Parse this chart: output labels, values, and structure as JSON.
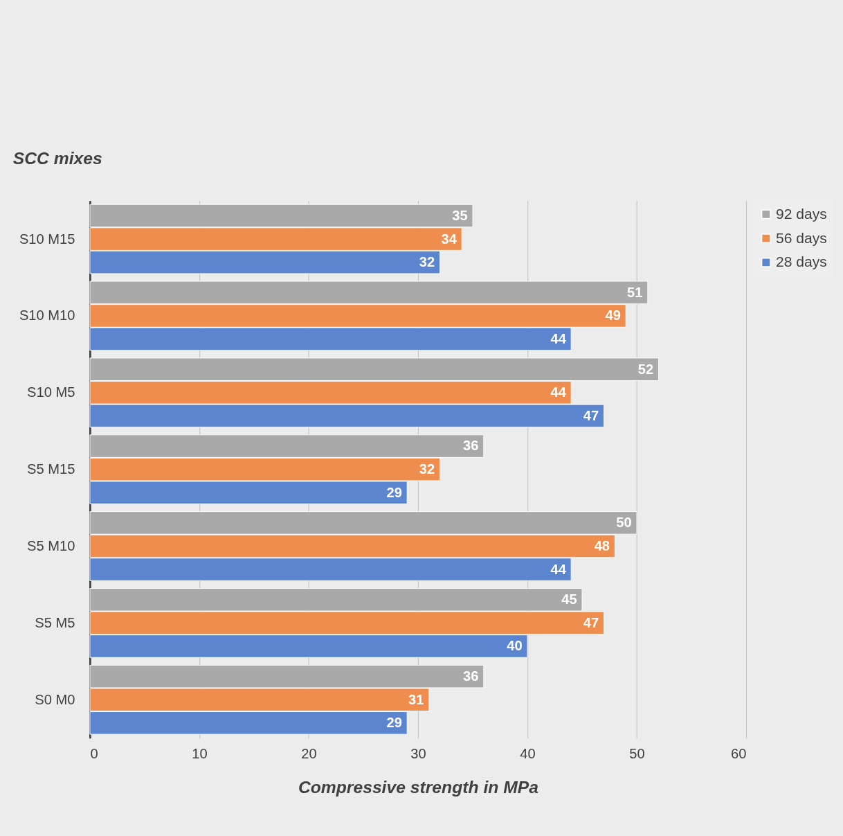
{
  "chart_data": {
    "type": "bar",
    "orientation": "horizontal",
    "ylabel": "SCC mixes",
    "xlabel": "Compressive strength in MPa",
    "categories": [
      "S10 M15",
      "S10 M10",
      "S10 M5",
      "S5 M15",
      "S5 M10",
      "S5 M5",
      "S0 M0"
    ],
    "series": [
      {
        "name": "92 days",
        "color": "#a9a9a9",
        "values": [
          35,
          51,
          52,
          36,
          50,
          45,
          36
        ]
      },
      {
        "name": "56 days",
        "color": "#ef8d4f",
        "values": [
          34,
          49,
          44,
          32,
          48,
          47,
          31
        ]
      },
      {
        "name": "28 days",
        "color": "#5b86cf",
        "values": [
          32,
          44,
          47,
          29,
          44,
          40,
          29
        ]
      }
    ],
    "xlim": [
      0,
      60
    ],
    "xticks": [
      0,
      10,
      20,
      30,
      40,
      50,
      60
    ],
    "grid": "x",
    "legend": "right",
    "data_labels": true
  }
}
